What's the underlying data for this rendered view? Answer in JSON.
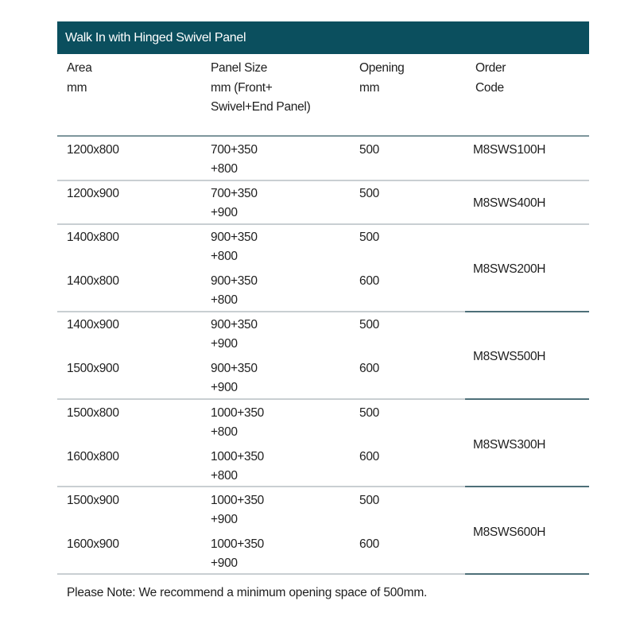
{
  "table": {
    "title": "Walk In with Hinged Swivel Panel",
    "headers": {
      "area": [
        "Area",
        "mm"
      ],
      "panel": [
        "Panel Size",
        "mm (Front+",
        "Swivel+End Panel)"
      ],
      "opening": [
        "Opening",
        "mm"
      ],
      "code": [
        "Order",
        "Code"
      ]
    },
    "rows": [
      {
        "area": "1200x800",
        "panel": [
          "700+350",
          "+800"
        ],
        "opening": "500"
      },
      {
        "area": "1200x900",
        "panel": [
          "700+350",
          "+900"
        ],
        "opening": "500"
      },
      {
        "area": "1400x800",
        "panel": [
          "900+350",
          "+800"
        ],
        "opening": "500"
      },
      {
        "area": "1400x800",
        "panel": [
          "900+350",
          "+800"
        ],
        "opening": "600"
      },
      {
        "area": "1400x900",
        "panel": [
          "900+350",
          "+900"
        ],
        "opening": "500"
      },
      {
        "area": "1500x900",
        "panel": [
          "900+350",
          "+900"
        ],
        "opening": "600"
      },
      {
        "area": "1500x800",
        "panel": [
          "1000+350",
          "+800"
        ],
        "opening": "500"
      },
      {
        "area": "1600x800",
        "panel": [
          "1000+350",
          "+800"
        ],
        "opening": "600"
      },
      {
        "area": "1500x900",
        "panel": [
          "1000+350",
          "+900"
        ],
        "opening": "500"
      },
      {
        "area": "1600x900",
        "panel": [
          "1000+350",
          "+900"
        ],
        "opening": "600"
      }
    ],
    "codes": [
      "M8SWS100H",
      "M8SWS400H",
      "M8SWS200H",
      "M8SWS500H",
      "M8SWS300H",
      "M8SWS600H"
    ]
  },
  "note": "Please Note: We recommend a minimum opening space of 500mm.",
  "colors": {
    "header_bg": "#0b4f5e",
    "divider": "#c9cfd2",
    "group_divider": "#4d6f78"
  }
}
